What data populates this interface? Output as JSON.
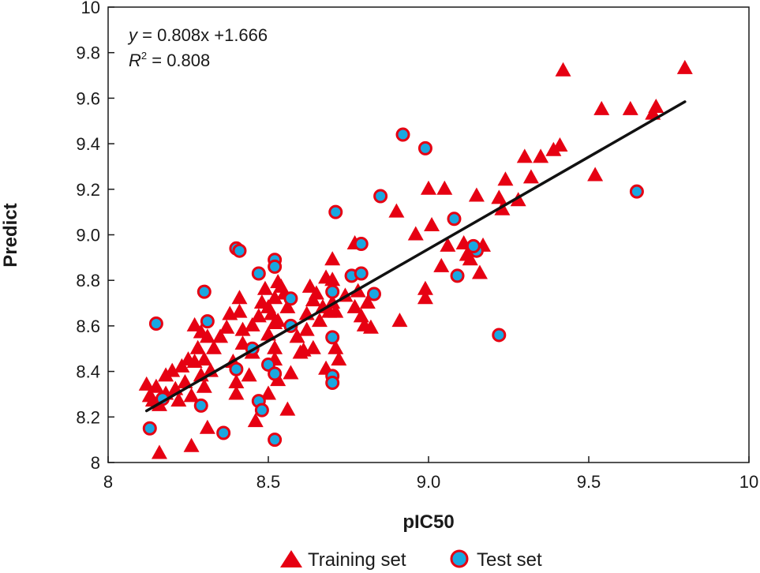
{
  "chart_data": {
    "type": "scatter",
    "title": "",
    "xlabel": "pIC50",
    "ylabel": "Predict",
    "xlim": [
      8,
      10
    ],
    "ylim": [
      8,
      10
    ],
    "x_ticks": [
      {
        "value": 8,
        "label": "8"
      },
      {
        "value": 8.5,
        "label": "8.5"
      },
      {
        "value": 9,
        "label": "9.0"
      },
      {
        "value": 9.5,
        "label": "9.5"
      },
      {
        "value": 10,
        "label": "10"
      }
    ],
    "y_ticks": [
      {
        "value": 8,
        "label": "8"
      },
      {
        "value": 8.2,
        "label": "8.2"
      },
      {
        "value": 8.4,
        "label": "8.4"
      },
      {
        "value": 8.6,
        "label": "8.6"
      },
      {
        "value": 8.8,
        "label": "8.8"
      },
      {
        "value": 9,
        "label": "9.0"
      },
      {
        "value": 9.2,
        "label": "9.2"
      },
      {
        "value": 9.4,
        "label": "9.4"
      },
      {
        "value": 9.6,
        "label": "9.6"
      },
      {
        "value": 9.8,
        "label": "9.8"
      },
      {
        "value": 10,
        "label": "10"
      }
    ],
    "grid": false,
    "legend_position": "bottom",
    "annotation": {
      "equation_lhs": "y",
      "equation_rhs": " = 0.808x +1.666",
      "r2_base": "R",
      "r2_exp": "2",
      "r2_rhs": " = 0.808"
    },
    "fit_line": {
      "slope": 0.808,
      "intercept": 1.666,
      "x_start": 8.12,
      "x_end": 9.8
    },
    "series": [
      {
        "name": "Training set",
        "marker": "triangle",
        "color": "#e60012",
        "points": [
          [
            8.12,
            8.34
          ],
          [
            8.13,
            8.29
          ],
          [
            8.14,
            8.27
          ],
          [
            8.15,
            8.33
          ],
          [
            8.16,
            8.25
          ],
          [
            8.16,
            8.04
          ],
          [
            8.18,
            8.38
          ],
          [
            8.18,
            8.3
          ],
          [
            8.2,
            8.4
          ],
          [
            8.21,
            8.32
          ],
          [
            8.22,
            8.27
          ],
          [
            8.23,
            8.42
          ],
          [
            8.24,
            8.35
          ],
          [
            8.25,
            8.45
          ],
          [
            8.26,
            8.29
          ],
          [
            8.26,
            8.07
          ],
          [
            8.27,
            8.6
          ],
          [
            8.27,
            8.44
          ],
          [
            8.28,
            8.5
          ],
          [
            8.29,
            8.38
          ],
          [
            8.29,
            8.57
          ],
          [
            8.3,
            8.33
          ],
          [
            8.3,
            8.45
          ],
          [
            8.31,
            8.55
          ],
          [
            8.31,
            8.15
          ],
          [
            8.32,
            8.4
          ],
          [
            8.33,
            8.5
          ],
          [
            8.35,
            8.55
          ],
          [
            8.37,
            8.59
          ],
          [
            8.38,
            8.65
          ],
          [
            8.39,
            8.44
          ],
          [
            8.4,
            8.3
          ],
          [
            8.4,
            8.35
          ],
          [
            8.41,
            8.72
          ],
          [
            8.41,
            8.66
          ],
          [
            8.42,
            8.58
          ],
          [
            8.42,
            8.52
          ],
          [
            8.44,
            8.38
          ],
          [
            8.45,
            8.6
          ],
          [
            8.45,
            8.48
          ],
          [
            8.46,
            8.18
          ],
          [
            8.47,
            8.64
          ],
          [
            8.48,
            8.7
          ],
          [
            8.49,
            8.76
          ],
          [
            8.5,
            8.68
          ],
          [
            8.5,
            8.56
          ],
          [
            8.5,
            8.3
          ],
          [
            8.51,
            8.65
          ],
          [
            8.52,
            8.61
          ],
          [
            8.52,
            8.72
          ],
          [
            8.52,
            8.5
          ],
          [
            8.52,
            8.45
          ],
          [
            8.53,
            8.79
          ],
          [
            8.53,
            8.62
          ],
          [
            8.53,
            8.36
          ],
          [
            8.54,
            8.77
          ],
          [
            8.55,
            8.74
          ],
          [
            8.56,
            8.68
          ],
          [
            8.56,
            8.23
          ],
          [
            8.57,
            8.39
          ],
          [
            8.59,
            8.55
          ],
          [
            8.6,
            8.48
          ],
          [
            8.61,
            8.49
          ],
          [
            8.62,
            8.65
          ],
          [
            8.62,
            8.58
          ],
          [
            8.63,
            8.77
          ],
          [
            8.64,
            8.71
          ],
          [
            8.64,
            8.5
          ],
          [
            8.65,
            8.74
          ],
          [
            8.66,
            8.62
          ],
          [
            8.67,
            8.68
          ],
          [
            8.68,
            8.81
          ],
          [
            8.68,
            8.41
          ],
          [
            8.69,
            8.66
          ],
          [
            8.7,
            8.89
          ],
          [
            8.7,
            8.8
          ],
          [
            8.7,
            8.7
          ],
          [
            8.71,
            8.66
          ],
          [
            8.71,
            8.5
          ],
          [
            8.72,
            8.45
          ],
          [
            8.74,
            8.73
          ],
          [
            8.77,
            8.96
          ],
          [
            8.77,
            8.68
          ],
          [
            8.78,
            8.75
          ],
          [
            8.79,
            8.64
          ],
          [
            8.8,
            8.6
          ],
          [
            8.81,
            8.7
          ],
          [
            8.82,
            8.59
          ],
          [
            8.9,
            9.1
          ],
          [
            8.91,
            8.62
          ],
          [
            8.96,
            9.0
          ],
          [
            8.99,
            8.72
          ],
          [
            8.99,
            8.76
          ],
          [
            9.0,
            9.2
          ],
          [
            9.01,
            9.04
          ],
          [
            9.04,
            8.86
          ],
          [
            9.05,
            9.2
          ],
          [
            9.06,
            8.95
          ],
          [
            9.11,
            8.96
          ],
          [
            9.12,
            8.91
          ],
          [
            9.13,
            8.89
          ],
          [
            9.14,
            8.93
          ],
          [
            9.15,
            9.17
          ],
          [
            9.16,
            8.83
          ],
          [
            9.17,
            8.95
          ],
          [
            9.22,
            9.16
          ],
          [
            9.23,
            9.11
          ],
          [
            9.24,
            9.24
          ],
          [
            9.28,
            9.15
          ],
          [
            9.3,
            9.34
          ],
          [
            9.32,
            9.25
          ],
          [
            9.35,
            9.34
          ],
          [
            9.39,
            9.37
          ],
          [
            9.41,
            9.39
          ],
          [
            9.42,
            9.72
          ],
          [
            9.52,
            9.26
          ],
          [
            9.54,
            9.55
          ],
          [
            9.63,
            9.55
          ],
          [
            9.7,
            9.53
          ],
          [
            9.71,
            9.56
          ],
          [
            9.8,
            9.73
          ]
        ]
      },
      {
        "name": "Test set",
        "marker": "circle",
        "color": "#1aa7e0",
        "edge_color": "#e60012",
        "points": [
          [
            8.13,
            8.15
          ],
          [
            8.15,
            8.61
          ],
          [
            8.17,
            8.28
          ],
          [
            8.29,
            8.25
          ],
          [
            8.3,
            8.75
          ],
          [
            8.31,
            8.62
          ],
          [
            8.36,
            8.13
          ],
          [
            8.4,
            8.41
          ],
          [
            8.4,
            8.94
          ],
          [
            8.41,
            8.93
          ],
          [
            8.45,
            8.5
          ],
          [
            8.47,
            8.27
          ],
          [
            8.47,
            8.83
          ],
          [
            8.48,
            8.23
          ],
          [
            8.5,
            8.43
          ],
          [
            8.52,
            8.89
          ],
          [
            8.52,
            8.86
          ],
          [
            8.52,
            8.39
          ],
          [
            8.52,
            8.1
          ],
          [
            8.57,
            8.6
          ],
          [
            8.57,
            8.72
          ],
          [
            8.7,
            8.75
          ],
          [
            8.7,
            8.55
          ],
          [
            8.7,
            8.38
          ],
          [
            8.7,
            8.35
          ],
          [
            8.71,
            9.1
          ],
          [
            8.76,
            8.82
          ],
          [
            8.79,
            8.83
          ],
          [
            8.79,
            8.96
          ],
          [
            8.83,
            8.74
          ],
          [
            8.85,
            9.17
          ],
          [
            8.92,
            9.44
          ],
          [
            8.99,
            9.38
          ],
          [
            9.08,
            9.07
          ],
          [
            9.09,
            8.82
          ],
          [
            9.15,
            8.93
          ],
          [
            9.14,
            8.95
          ],
          [
            9.22,
            8.56
          ],
          [
            9.65,
            9.19
          ]
        ]
      }
    ]
  }
}
